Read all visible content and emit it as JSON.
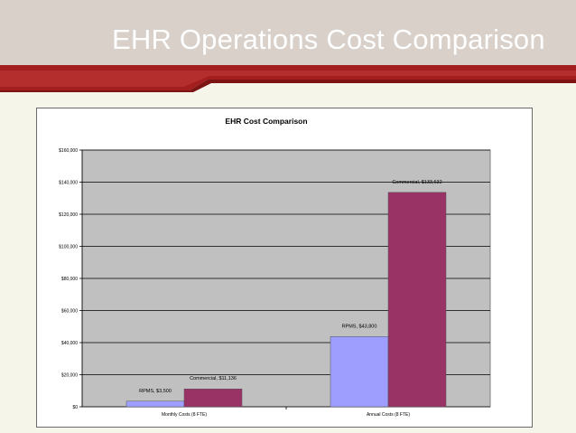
{
  "slide": {
    "title": "EHR Operations Cost Comparison"
  },
  "colors": {
    "rpms": "#9e9eff",
    "commercial": "#993366",
    "plot_bg": "#c0c0c0",
    "header_bg": "#d8d0c9",
    "accent_red": "#a31f1f"
  },
  "chart_data": {
    "type": "bar",
    "title": "EHR Cost Comparison",
    "categories": [
      "Monthly Costs (8 FTE)",
      "Annual Costs (8 FTE)"
    ],
    "series": [
      {
        "name": "RPMS",
        "values": [
          3500,
          43800
        ]
      },
      {
        "name": "Commercial",
        "values": [
          11136,
          133632
        ]
      }
    ],
    "data_labels": [
      [
        "RPMS, $3,500",
        "RPMS, $43,800"
      ],
      [
        "Commercial, $11,136",
        "Commercial, $133,632"
      ]
    ],
    "ylim": [
      0,
      160000
    ],
    "yticks": [
      0,
      20000,
      40000,
      60000,
      80000,
      100000,
      120000,
      140000,
      160000
    ],
    "ytick_labels": [
      "$0",
      "$20,000",
      "$40,000",
      "$60,000",
      "$80,000",
      "$100,000",
      "$120,000",
      "$140,000",
      "$160,000"
    ],
    "grid": true,
    "legend": "none"
  }
}
